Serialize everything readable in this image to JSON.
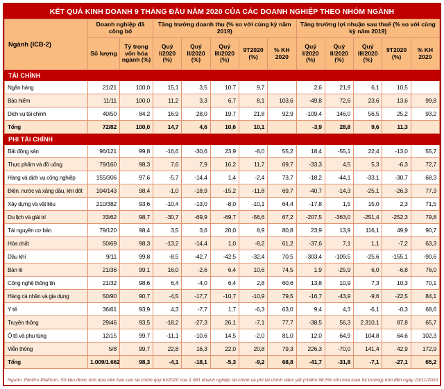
{
  "chart_data": {
    "type": "table",
    "title": "KẾT QUẢ KINH DOANH 9 THÁNG ĐẦU NĂM 2020 CỦA CÁC DOANH NGHIỆP THEO NHÓM NGÀNH",
    "industry_col_header": "Ngành (ICB-2)",
    "column_groups": [
      {
        "label": "Doanh nghiệp đã công bố",
        "span": 2
      },
      {
        "label": "Tăng trưởng doanh thu (% so với cùng kỳ năm 2019)",
        "span": 5
      },
      {
        "label": "Tăng trưởng lợi nhuận sau thuế (% so với cùng kỳ năm 2019)",
        "span": 5
      }
    ],
    "sub_columns": [
      "Số lượng",
      "Tỷ trọng vốn hóa ngành (%)",
      "Quý I/2020 (%)",
      "Quý II/2020 (%)",
      "Quý III/2020 (%)",
      "9T2020 (%)",
      "% KH 2020",
      "Quý I/2020 (%)",
      "Quý II/2020 (%)",
      "Quý III/2020 (%)",
      "9T2020 (%)",
      "% KH 2020"
    ],
    "sections": [
      {
        "name": "TÀI CHÍNH",
        "rows": [
          {
            "label": "Ngân hàng",
            "values": [
              "21/21",
              "100,0",
              "15,1",
              "3,5",
              "10,7",
              "9,7",
              "",
              "2,6",
              "21,9",
              "6,1",
              "10,5",
              ""
            ]
          },
          {
            "label": "Bảo hiểm",
            "values": [
              "11/11",
              "100,0",
              "11,2",
              "3,3",
              "6,7",
              "8,1",
              "103,6",
              "-49,8",
              "72,6",
              "23,6",
              "13,6",
              "99,8"
            ]
          },
          {
            "label": "Dịch vụ tài chính",
            "values": [
              "40/50",
              "84,2",
              "16,9",
              "28,0",
              "19,7",
              "21,8",
              "92,9",
              "-109,4",
              "146,0",
              "56,5",
              "25,2",
              "93,2"
            ]
          }
        ],
        "total": {
          "label": "Tổng",
          "values": [
            "72/82",
            "100,0",
            "14,7",
            "4,6",
            "10,6",
            "10,1",
            "",
            "-3,9",
            "28,8",
            "9,6",
            "11,3",
            ""
          ]
        }
      },
      {
        "name": "PHI TÀI CHÍNH",
        "rows": [
          {
            "label": "Bất động sản",
            "values": [
              "96/121",
              "99,8",
              "-16,6",
              "-30,6",
              "23,9",
              "-8,0",
              "55,2",
              "18,4",
              "-55,1",
              "22,4",
              "-13,0",
              "55,7"
            ]
          },
          {
            "label": "Thực phẩm và đồ uống",
            "values": [
              "79/160",
              "98,3",
              "7,6",
              "7,9",
              "16,2",
              "11,7",
              "69,7",
              "-33,3",
              "4,5",
              "5,3",
              "-6,3",
              "72,7"
            ]
          },
          {
            "label": "Hàng và dịch vụ công nghiệp",
            "values": [
              "155/306",
              "97,6",
              "-5,7",
              "-14,4",
              "1,4",
              "-2,4",
              "73,7",
              "-18,2",
              "-44,1",
              "-33,1",
              "-30,7",
              "68,3"
            ]
          },
          {
            "label": "Điện, nước và xăng dầu, khí đốt",
            "values": [
              "104/143",
              "98,4",
              "-1,0",
              "-18,9",
              "-15,2",
              "-11,8",
              "69,7",
              "-40,7",
              "-14,3",
              "-25,1",
              "-26,3",
              "77,3"
            ]
          },
          {
            "label": "Xây dựng và vật liệu",
            "values": [
              "210/382",
              "93,6",
              "-10,4",
              "-13,0",
              "-8,0",
              "-10,1",
              "64,4",
              "-17,8",
              "1,5",
              "15,0",
              "2,3",
              "71,5"
            ]
          },
          {
            "label": "Du lịch và giải trí",
            "values": [
              "33/62",
              "98,7",
              "-30,7",
              "-69,9",
              "-69,7",
              "-56,6",
              "67,2",
              "-207,5",
              "-363,0",
              "-251,4",
              "-252,3",
              "79,8"
            ]
          },
          {
            "label": "Tài nguyên cơ bản",
            "values": [
              "79/120",
              "98,4",
              "3,5",
              "3,6",
              "20,0",
              "8,9",
              "80,8",
              "23,9",
              "13,9",
              "116,1",
              "49,9",
              "90,7"
            ]
          },
          {
            "label": "Hóa chất",
            "values": [
              "50/69",
              "98,3",
              "-13,2",
              "-14,4",
              "1,0",
              "-8,2",
              "61,2",
              "-37,6",
              "7,1",
              "1,1",
              "-7,2",
              "63,3"
            ]
          },
          {
            "label": "Dầu khí",
            "values": [
              "9/11",
              "99,8",
              "-8,5",
              "-42,7",
              "-42,5",
              "-32,4",
              "70,5",
              "-303,4",
              "-109,5",
              "-25,6",
              "-155,1",
              "-90,6"
            ]
          },
          {
            "label": "Bán lẻ",
            "values": [
              "21/36",
              "99,1",
              "16,0",
              "-2,6",
              "6,4",
              "10,6",
              "74,5",
              "1,9",
              "-25,9",
              "6,0",
              "-6,8",
              "76,0"
            ]
          },
          {
            "label": "Công nghệ thông tin",
            "values": [
              "21/32",
              "98,6",
              "6,4",
              "-4,0",
              "6,4",
              "2,8",
              "60,6",
              "13,8",
              "10,9",
              "7,3",
              "10,3",
              "70,1"
            ]
          },
          {
            "label": "Hàng cá nhân và gia dụng",
            "values": [
              "50/90",
              "90,7",
              "-4,5",
              "-17,7",
              "-10,7",
              "-10,9",
              "79,5",
              "-16,7",
              "-43,9",
              "-9,6",
              "-22,5",
              "84,1"
            ]
          },
          {
            "label": "Y tế",
            "values": [
              "36/61",
              "93,9",
              "4,3",
              "-7,7",
              "1,7",
              "-6,3",
              "63,0",
              "9,4",
              "4,3",
              "-6,1",
              "-0,3",
              "68,6"
            ]
          },
          {
            "label": "Truyền thông",
            "values": [
              "29/46",
              "93,5",
              "-18,2",
              "-27,3",
              "26,1",
              "-7,1",
              "77,7",
              "-38,5",
              "56,3",
              "2.310,1",
              "87,8",
              "65,7"
            ]
          },
          {
            "label": "Ô tô và phụ tùng",
            "values": [
              "12/15",
              "99,7",
              "-11,1",
              "-10,6",
              "14,5",
              "-2,0",
              "81,0",
              "12,0",
              "64,9",
              "104,8",
              "64,6",
              "102,3"
            ]
          },
          {
            "label": "Viễn thông",
            "values": [
              "5/8",
              "99,7",
              "22,8",
              "16,3",
              "22,0",
              "20,8",
              "79,3",
              "226,3",
              "-70,0",
              "141,4",
              "42,9",
              "172,9"
            ]
          }
        ],
        "total": {
          "label": "Tổng",
          "values": [
            "1.009/1.662",
            "98,3",
            "-4,1",
            "-18,1",
            "-5,3",
            "-9,2",
            "68,8",
            "-41,7",
            "-31,8",
            "-7,1",
            "-27,1",
            "65,2"
          ]
        }
      }
    ],
    "source_note": "Nguồn: FiinPro Platform. Số liệu được tính dựa trên báo cáo tài chính quý III/2020 của 1.081 doanh nghiệp tài chính và phi tài chính niêm yết (chiếm 98,5% vốn hóa toàn thị trường) tính đến ngày 10/11/2020"
  },
  "colors": {
    "title_bg": "#c00000",
    "outer_border": "#b00000",
    "header_bg": "#f9bb80",
    "band_bg": "#c00000",
    "alt_row_bg": "#fdeada",
    "total_row_bg": "#fce4cd",
    "border": "#e2926e",
    "footer_text": "#953735"
  }
}
